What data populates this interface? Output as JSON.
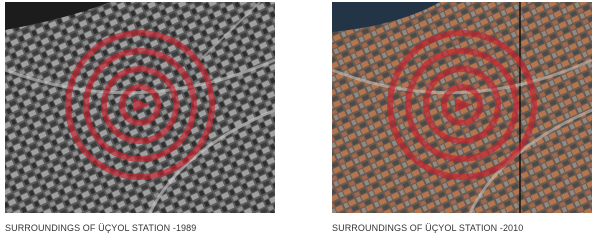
{
  "panels": [
    {
      "caption": "SURROUNDINGS OF ÜÇYOL STATION -1989"
    },
    {
      "caption": "SURROUNDINGS OF ÜÇYOL STATION -2010"
    }
  ]
}
